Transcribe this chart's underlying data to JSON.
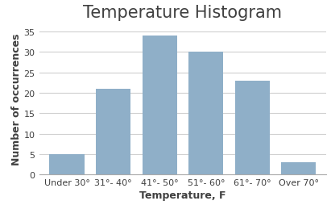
{
  "title": "Temperature Histogram",
  "xlabel": "Temperature, F",
  "ylabel": "Number of occurrences",
  "categories": [
    "Under 30°",
    "31°- 40°",
    "41°- 50°",
    "51°- 60°",
    "61°- 70°",
    "Over 70°"
  ],
  "values": [
    5,
    21,
    34,
    30,
    23,
    3
  ],
  "bar_color": "#8FAFC8",
  "ylim": [
    0,
    37
  ],
  "yticks": [
    0,
    5,
    10,
    15,
    20,
    25,
    30,
    35
  ],
  "background_color": "#ffffff",
  "title_fontsize": 15,
  "axis_label_fontsize": 9,
  "tick_fontsize": 8,
  "bar_width": 0.75
}
